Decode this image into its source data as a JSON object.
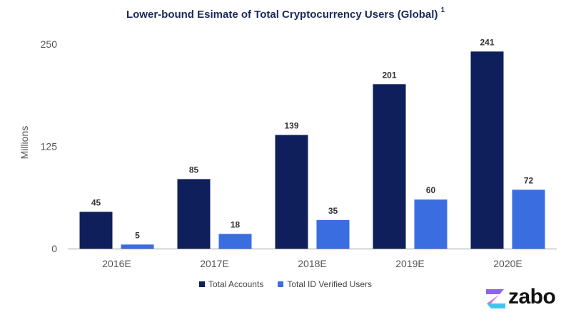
{
  "chart_data": {
    "type": "bar",
    "title": "Lower-bound Esimate of Total Cryptocurrency Users (Global)",
    "title_footnote": "1",
    "categories": [
      "2016E",
      "2017E",
      "2018E",
      "2019E",
      "2020E"
    ],
    "series": [
      {
        "name": "Total Accounts",
        "color": "#0e1f5b",
        "values": [
          45,
          85,
          139,
          201,
          241
        ]
      },
      {
        "name": "Total ID Verified Users",
        "color": "#3a6ee0",
        "values": [
          5,
          18,
          35,
          60,
          72
        ]
      }
    ],
    "ylabel": "Millions",
    "xlabel": "",
    "ylim": [
      0,
      250
    ],
    "yticks": [
      0,
      125,
      250
    ],
    "grid": false,
    "legend_position": "bottom"
  },
  "branding": {
    "logo_text": "zabo",
    "logo_icon": "zabo-logo-icon"
  }
}
